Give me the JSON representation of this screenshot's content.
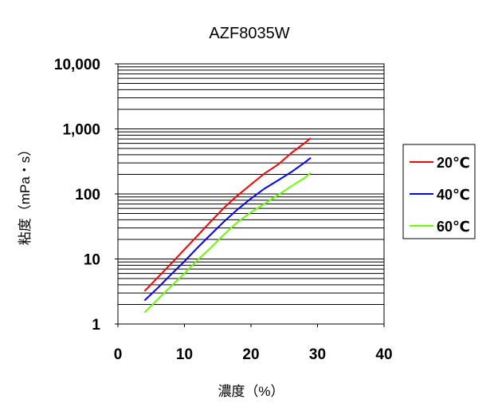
{
  "chart_data": {
    "type": "line",
    "title": "AZF8035W",
    "xlabel": "濃度（%）",
    "ylabel": "粘度（mPa・s）",
    "x_scale": "linear",
    "y_scale": "log",
    "xlim": [
      0,
      40
    ],
    "ylim": [
      1,
      10000
    ],
    "x_ticks": [
      0,
      10,
      20,
      30,
      40
    ],
    "x_tick_labels": [
      "0",
      "10",
      "20",
      "30",
      "40"
    ],
    "y_ticks": [
      1,
      10,
      100,
      1000,
      10000
    ],
    "y_tick_labels": [
      "1",
      "10",
      "100",
      "1,000",
      "10,000"
    ],
    "grid": "horizontal",
    "legend_position": "right",
    "series": [
      {
        "name": "20℃",
        "color": "#ff0000",
        "x": [
          4,
          6,
          8,
          10,
          12,
          14,
          16,
          18,
          20,
          22,
          24,
          26,
          28,
          29
        ],
        "y": [
          3.2,
          5.2,
          8.5,
          14,
          23,
          38,
          62,
          95,
          140,
          205,
          280,
          420,
          600,
          720
        ]
      },
      {
        "name": "40℃",
        "color": "#0000ff",
        "x": [
          4,
          6,
          8,
          10,
          12,
          14,
          16,
          18,
          20,
          22,
          24,
          26,
          28,
          29
        ],
        "y": [
          2.3,
          3.6,
          5.8,
          9.2,
          15,
          24,
          38,
          58,
          85,
          120,
          160,
          215,
          300,
          360
        ]
      },
      {
        "name": "60℃",
        "color": "#66ff00",
        "x": [
          4,
          6,
          8,
          10,
          12,
          14,
          16,
          18,
          20,
          22,
          24,
          26,
          28,
          29
        ],
        "y": [
          1.5,
          2.4,
          3.8,
          6,
          9.7,
          15,
          24,
          37,
          52,
          70,
          95,
          130,
          175,
          210
        ]
      }
    ]
  }
}
